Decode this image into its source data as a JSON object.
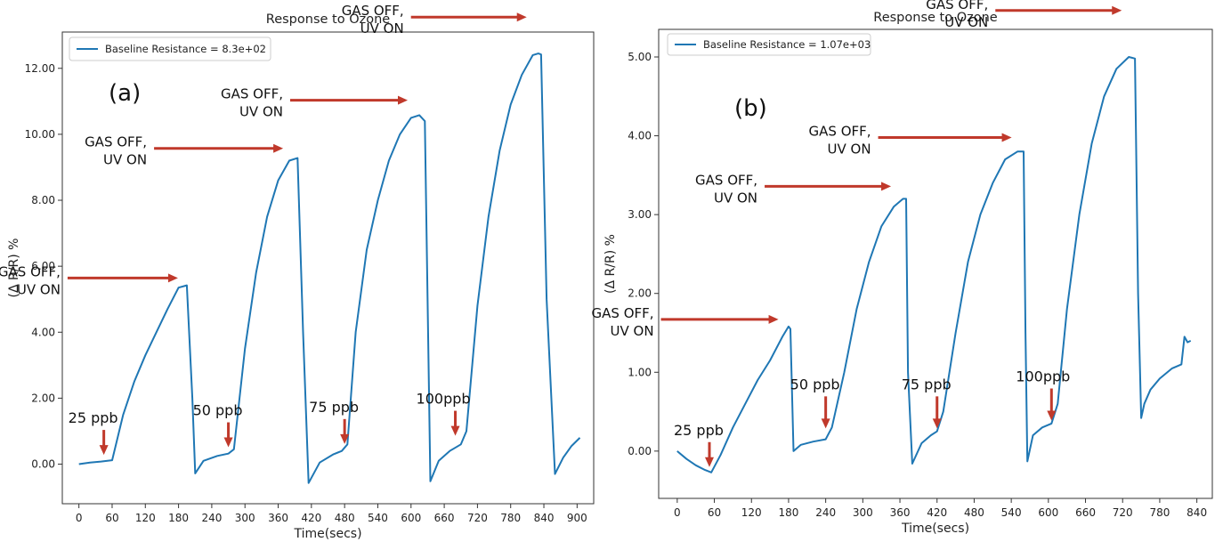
{
  "chart_data": [
    {
      "type": "line",
      "title": "Response to Ozone",
      "xlabel": "Time(secs)",
      "ylabel": "(Δ R/R) %",
      "panel_label": "(a)",
      "xlim": [
        -30,
        930
      ],
      "ylim": [
        -1.2,
        13.1
      ],
      "x_ticks": [
        0,
        60,
        120,
        180,
        240,
        300,
        360,
        420,
        480,
        540,
        600,
        660,
        720,
        780,
        840,
        900
      ],
      "x_tick_labels": [
        "0",
        "60",
        "120",
        "180",
        "240",
        "300",
        "360",
        "420",
        "480",
        "540",
        "600",
        "660",
        "720",
        "780",
        "840",
        "900"
      ],
      "y_ticks": [
        0,
        2,
        4,
        6,
        8,
        10,
        12
      ],
      "y_tick_labels": [
        "0.00",
        "2.00",
        "4.00",
        "6.00",
        "8.00",
        "10.00",
        "12.00"
      ],
      "grid": false,
      "legend_position": "top-left",
      "series": [
        {
          "name": "Baseline Resistance = 8.3e+02",
          "color": "#1f77b4",
          "x": [
            0,
            20,
            40,
            60,
            80,
            100,
            120,
            140,
            160,
            180,
            195,
            205,
            210,
            225,
            250,
            270,
            280,
            300,
            320,
            340,
            360,
            380,
            395,
            405,
            415,
            435,
            460,
            475,
            485,
            500,
            520,
            540,
            560,
            580,
            600,
            615,
            625,
            635,
            650,
            670,
            690,
            700,
            720,
            740,
            760,
            780,
            800,
            820,
            830,
            835,
            845,
            860,
            875,
            890,
            905
          ],
          "y": [
            0.0,
            0.05,
            0.08,
            0.12,
            1.5,
            2.5,
            3.3,
            4.0,
            4.7,
            5.35,
            5.42,
            2.0,
            -0.28,
            0.1,
            0.25,
            0.32,
            0.45,
            3.5,
            5.8,
            7.5,
            8.6,
            9.2,
            9.28,
            4.0,
            -0.57,
            0.05,
            0.3,
            0.4,
            0.6,
            4.0,
            6.5,
            8.0,
            9.2,
            10.0,
            10.5,
            10.58,
            10.4,
            -0.52,
            0.1,
            0.4,
            0.6,
            1.0,
            4.8,
            7.5,
            9.5,
            10.9,
            11.8,
            12.4,
            12.45,
            12.42,
            5.0,
            -0.3,
            0.2,
            0.55,
            0.8
          ]
        }
      ],
      "annotations": {
        "gas_off": [
          {
            "line1": "GAS OFF,",
            "line2": "UV ON",
            "x": 195,
            "y": 5.4
          },
          {
            "line1": "GAS OFF,",
            "line2": "UV ON",
            "x": 385,
            "y": 9.25
          },
          {
            "line1": "GAS OFF,",
            "line2": "UV ON",
            "x": 610,
            "y": 10.6
          },
          {
            "line1": "GAS OFF,",
            "line2": "UV ON",
            "x": 825,
            "y": 12.5
          }
        ],
        "concentrations": [
          {
            "label": "25 ppb",
            "x": 45,
            "y": 0.12
          },
          {
            "label": "50 ppb",
            "x": 270,
            "y": 0.35
          },
          {
            "label": "75 ppb",
            "x": 480,
            "y": 0.45
          },
          {
            "label": "100ppb",
            "x": 680,
            "y": 0.7
          }
        ]
      }
    },
    {
      "type": "line",
      "title": "Response to Ozone",
      "xlabel": "Time(secs)",
      "ylabel": "(Δ R/R) %",
      "panel_label": "(b)",
      "xlim": [
        -30,
        865
      ],
      "ylim": [
        -0.6,
        5.35
      ],
      "x_ticks": [
        0,
        60,
        120,
        180,
        240,
        300,
        360,
        420,
        480,
        540,
        600,
        660,
        720,
        780,
        840
      ],
      "x_tick_labels": [
        "0",
        "60",
        "120",
        "180",
        "240",
        "300",
        "360",
        "420",
        "480",
        "540",
        "600",
        "660",
        "720",
        "780",
        "840"
      ],
      "y_ticks": [
        0,
        1,
        2,
        3,
        4,
        5
      ],
      "y_tick_labels": [
        "0.00",
        "1.00",
        "2.00",
        "3.00",
        "4.00",
        "5.00"
      ],
      "grid": false,
      "legend_position": "top-left",
      "series": [
        {
          "name": "Baseline Resistance = 1.07e+03",
          "color": "#1f77b4",
          "x": [
            0,
            15,
            30,
            45,
            55,
            70,
            90,
            110,
            130,
            150,
            170,
            180,
            183,
            188,
            200,
            220,
            240,
            250,
            270,
            290,
            310,
            330,
            350,
            365,
            370,
            373,
            380,
            395,
            410,
            420,
            430,
            450,
            470,
            490,
            510,
            530,
            550,
            560,
            563,
            566,
            575,
            590,
            605,
            615,
            630,
            650,
            670,
            690,
            710,
            730,
            740,
            745,
            750,
            755,
            765,
            780,
            800,
            815,
            820,
            825,
            830
          ],
          "y": [
            0.0,
            -0.1,
            -0.18,
            -0.24,
            -0.27,
            -0.05,
            0.3,
            0.6,
            0.9,
            1.15,
            1.45,
            1.58,
            1.55,
            0.0,
            0.08,
            0.12,
            0.15,
            0.3,
            1.0,
            1.8,
            2.4,
            2.85,
            3.1,
            3.2,
            3.2,
            1.0,
            -0.16,
            0.1,
            0.2,
            0.25,
            0.5,
            1.5,
            2.4,
            3.0,
            3.4,
            3.7,
            3.8,
            3.8,
            1.5,
            -0.13,
            0.2,
            0.3,
            0.35,
            0.6,
            1.8,
            3.0,
            3.9,
            4.5,
            4.85,
            5.0,
            4.98,
            2.0,
            0.42,
            0.6,
            0.78,
            0.92,
            1.05,
            1.1,
            1.45,
            1.38,
            1.4
          ]
        }
      ],
      "annotations": {
        "gas_off": [
          {
            "line1": "GAS OFF,",
            "line2": "UV ON",
            "x": 178,
            "y": 1.58
          },
          {
            "line1": "GAS OFF,",
            "line2": "UV ON",
            "x": 360,
            "y": 3.2
          },
          {
            "line1": "GAS OFF,",
            "line2": "UV ON",
            "x": 555,
            "y": 3.82
          },
          {
            "line1": "GAS OFF,",
            "line2": "UV ON",
            "x": 733,
            "y": 4.98
          }
        ],
        "concentrations": [
          {
            "label": "25 ppb",
            "x": 52,
            "y": -0.27
          },
          {
            "label": "50 ppb",
            "x": 240,
            "y": 0.22
          },
          {
            "label": "75 ppb",
            "x": 420,
            "y": 0.22
          },
          {
            "label": "100ppb",
            "x": 605,
            "y": 0.32
          }
        ]
      }
    }
  ]
}
